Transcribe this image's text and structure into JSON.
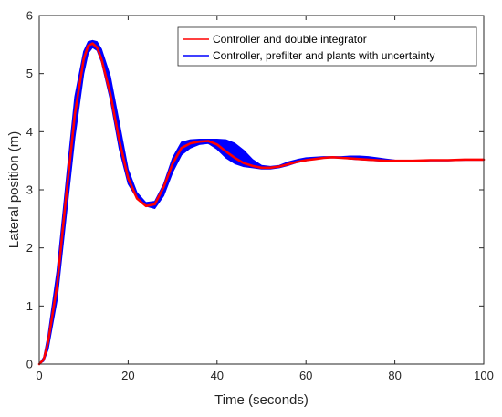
{
  "chart_data": {
    "type": "line",
    "title": "",
    "xlabel": "Time (seconds)",
    "ylabel": "Lateral position (m)",
    "xlim": [
      0,
      100
    ],
    "ylim": [
      0,
      6
    ],
    "xticks": [
      0,
      20,
      40,
      60,
      80,
      100
    ],
    "yticks": [
      0,
      1,
      2,
      3,
      4,
      5,
      6
    ],
    "grid": false,
    "legend_position": "top-right",
    "series": [
      {
        "name": "Controller, prefilter and plants with uncertainty",
        "color": "#0000ff",
        "style": "band",
        "x": [
          0,
          1,
          2,
          4,
          6,
          8,
          10,
          11,
          12,
          13,
          14,
          16,
          18,
          20,
          22,
          24,
          26,
          28,
          30,
          32,
          34,
          36,
          38,
          40,
          42,
          44,
          46,
          48,
          50,
          52,
          54,
          56,
          58,
          60,
          62,
          64,
          66,
          68,
          70,
          72,
          74,
          76,
          78,
          80,
          84,
          88,
          92,
          96,
          100
        ],
        "lower": [
          0,
          0.05,
          0.25,
          1.1,
          2.5,
          3.9,
          5.0,
          5.35,
          5.45,
          5.4,
          5.2,
          4.55,
          3.7,
          3.1,
          2.85,
          2.72,
          2.68,
          2.9,
          3.3,
          3.6,
          3.72,
          3.78,
          3.8,
          3.7,
          3.55,
          3.45,
          3.4,
          3.38,
          3.36,
          3.36,
          3.38,
          3.42,
          3.47,
          3.5,
          3.53,
          3.55,
          3.55,
          3.55,
          3.53,
          3.52,
          3.51,
          3.5,
          3.49,
          3.48,
          3.49,
          3.5,
          3.5,
          3.51,
          3.51
        ],
        "upper": [
          0,
          0.12,
          0.5,
          1.6,
          3.1,
          4.6,
          5.38,
          5.55,
          5.57,
          5.55,
          5.42,
          4.95,
          4.15,
          3.35,
          2.95,
          2.78,
          2.8,
          3.1,
          3.55,
          3.82,
          3.86,
          3.87,
          3.87,
          3.87,
          3.86,
          3.8,
          3.68,
          3.52,
          3.42,
          3.4,
          3.42,
          3.48,
          3.52,
          3.55,
          3.56,
          3.57,
          3.57,
          3.57,
          3.58,
          3.58,
          3.57,
          3.55,
          3.53,
          3.51,
          3.5,
          3.51,
          3.51,
          3.52,
          3.52
        ]
      },
      {
        "name": "Controller and double integrator",
        "color": "#ff0000",
        "style": "line",
        "x": [
          0,
          1,
          2,
          4,
          6,
          8,
          10,
          11,
          12,
          13,
          14,
          16,
          18,
          20,
          22,
          24,
          26,
          28,
          30,
          32,
          34,
          36,
          38,
          40,
          42,
          44,
          46,
          48,
          50,
          52,
          54,
          56,
          58,
          60,
          62,
          64,
          66,
          68,
          70,
          72,
          74,
          76,
          78,
          80,
          84,
          88,
          92,
          96,
          100
        ],
        "y": [
          0,
          0.08,
          0.38,
          1.35,
          2.85,
          4.3,
          5.25,
          5.48,
          5.52,
          5.45,
          5.25,
          4.65,
          3.85,
          3.2,
          2.85,
          2.72,
          2.75,
          3.05,
          3.45,
          3.72,
          3.8,
          3.83,
          3.84,
          3.78,
          3.66,
          3.55,
          3.46,
          3.41,
          3.38,
          3.38,
          3.4,
          3.44,
          3.48,
          3.51,
          3.53,
          3.55,
          3.56,
          3.55,
          3.54,
          3.53,
          3.52,
          3.51,
          3.5,
          3.5,
          3.5,
          3.51,
          3.51,
          3.52,
          3.52
        ]
      }
    ],
    "legend": [
      {
        "label": "Controller and double integrator",
        "color": "#ff0000"
      },
      {
        "label": "Controller, prefilter and plants with uncertainty",
        "color": "#0000ff"
      }
    ]
  }
}
